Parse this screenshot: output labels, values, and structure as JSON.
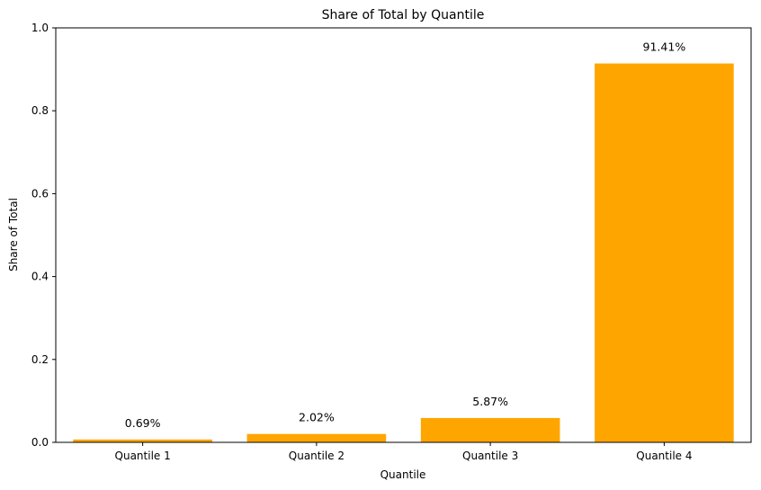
{
  "chart_data": {
    "type": "bar",
    "title": "Share of Total by Quantile",
    "xlabel": "Quantile",
    "ylabel": "Share of Total",
    "categories": [
      "Quantile 1",
      "Quantile 2",
      "Quantile 3",
      "Quantile 4"
    ],
    "values": [
      0.0069,
      0.0202,
      0.0587,
      0.9141
    ],
    "data_labels": [
      "0.69%",
      "2.02%",
      "5.87%",
      "91.41%"
    ],
    "ylim": [
      0,
      1.0
    ],
    "yticks": [
      0.0,
      0.2,
      0.4,
      0.6,
      0.8,
      1.0
    ],
    "ytick_labels": [
      "0.0",
      "0.2",
      "0.4",
      "0.6",
      "0.8",
      "1.0"
    ],
    "bar_color": "#ffa500",
    "grid": false,
    "legend": "none"
  }
}
